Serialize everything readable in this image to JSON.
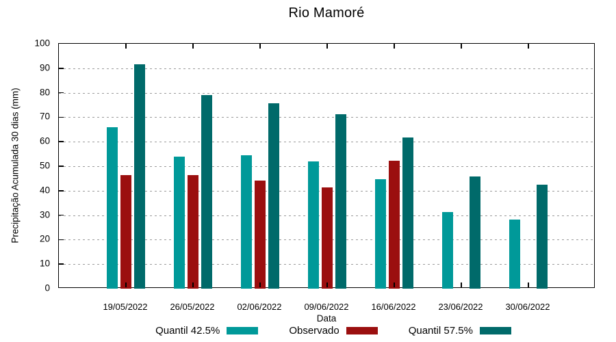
{
  "title": "Rio Mamoré",
  "chart_data": {
    "type": "bar",
    "title": "Rio Mamoré",
    "xlabel": "Data",
    "ylabel": "Precipitação Acumulada 30 dias (mm)",
    "ylim": [
      0,
      100
    ],
    "ytick_step": 10,
    "grid": true,
    "legend_position": "bottom",
    "categories": [
      "19/05/2022",
      "26/05/2022",
      "02/06/2022",
      "09/06/2022",
      "16/06/2022",
      "23/06/2022",
      "30/06/2022"
    ],
    "series": [
      {
        "name": "Quantil 42.5%",
        "color": "#009999",
        "values": [
          66,
          54,
          54.6,
          52,
          44.6,
          31.2,
          28.1
        ]
      },
      {
        "name": "Observado",
        "color": "#9B0F0F",
        "values": [
          46.3,
          46.5,
          44,
          41.3,
          52.2,
          null,
          null
        ]
      },
      {
        "name": "Quantil 57.5%",
        "color": "#006A6A",
        "values": [
          91.7,
          79,
          75.7,
          71.2,
          61.7,
          45.7,
          42.4
        ]
      }
    ]
  }
}
